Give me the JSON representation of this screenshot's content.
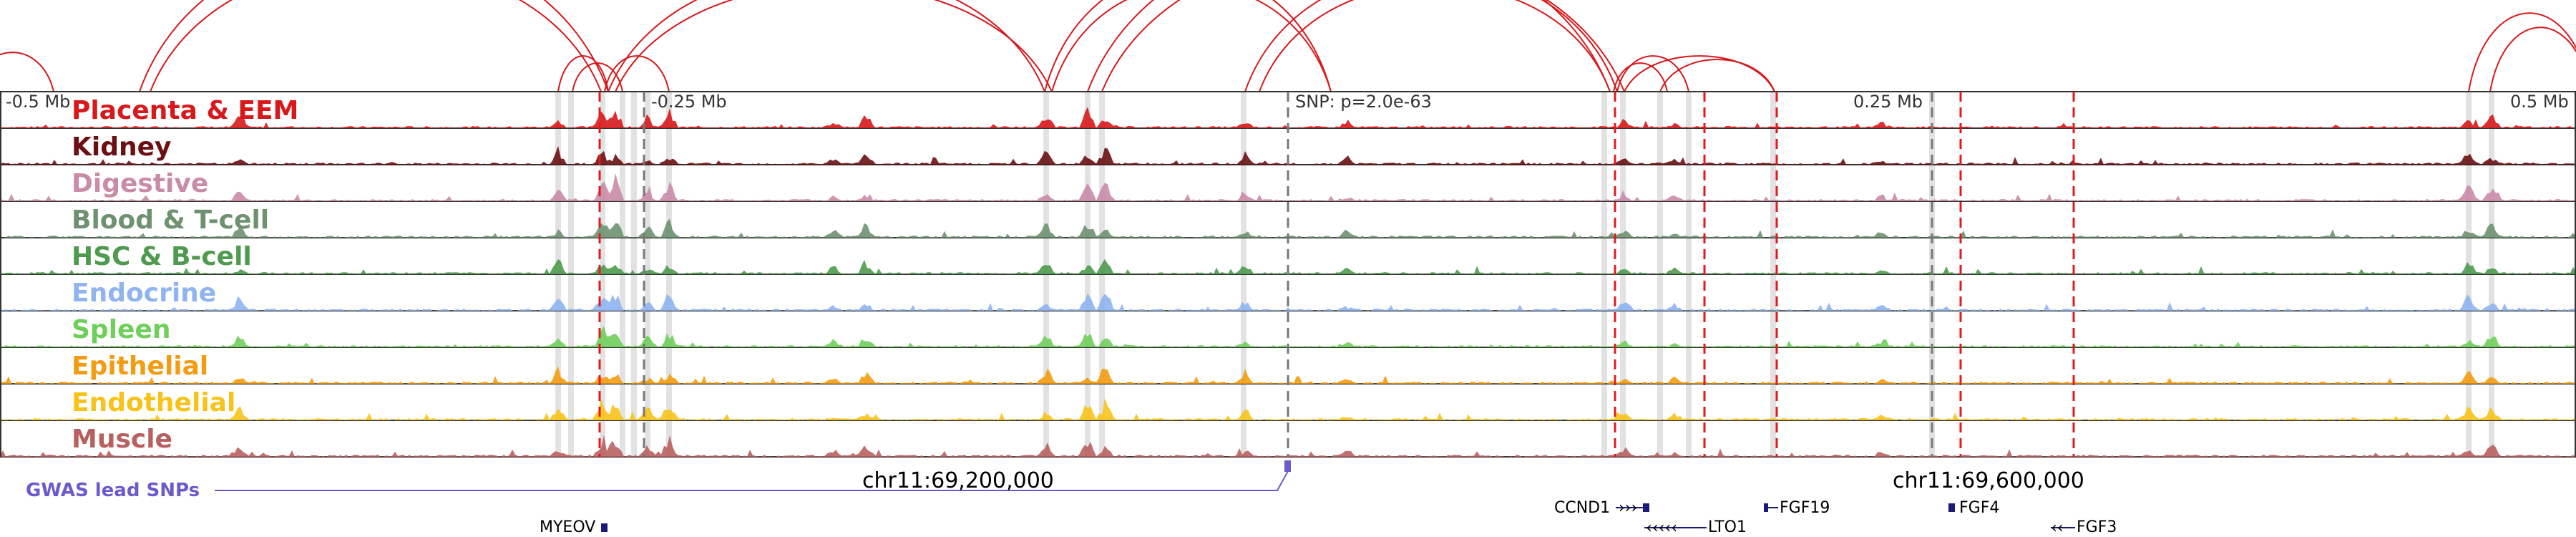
{
  "scale_labels": [
    "-0.5 Mb",
    "-0.25 Mb",
    "0.25 Mb",
    "0.5 Mb"
  ],
  "snp_label": "SNP: p=2.0e-63",
  "tracks": [
    {
      "label": "Placenta & EEM",
      "color": "#d7191c"
    },
    {
      "label": "Kidney",
      "color": "#6b0f12"
    },
    {
      "label": "Digestive",
      "color": "#c98ba7"
    },
    {
      "label": "Blood & T-cell",
      "color": "#6e9170"
    },
    {
      "label": "HSC & B-cell",
      "color": "#4e9a4e"
    },
    {
      "label": "Endocrine",
      "color": "#8fb4f0"
    },
    {
      "label": "Spleen",
      "color": "#6fcf5a"
    },
    {
      "label": "Epithelial",
      "color": "#f39c12"
    },
    {
      "label": "Endothelial",
      "color": "#f7c31b"
    },
    {
      "label": "Muscle",
      "color": "#b8605f"
    }
  ],
  "gwas_label": "GWAS lead SNPs",
  "gwas_color": "#6a5acd",
  "coordinates": [
    "chr11:69,200,000",
    "chr11:69,600,000"
  ],
  "genes": [
    "CCND1",
    "FGF19",
    "FGF4",
    "MYEOV",
    "LTO1",
    "FGF3"
  ],
  "arc_color": "#d7191c",
  "highlight_color": "#dddddd"
}
